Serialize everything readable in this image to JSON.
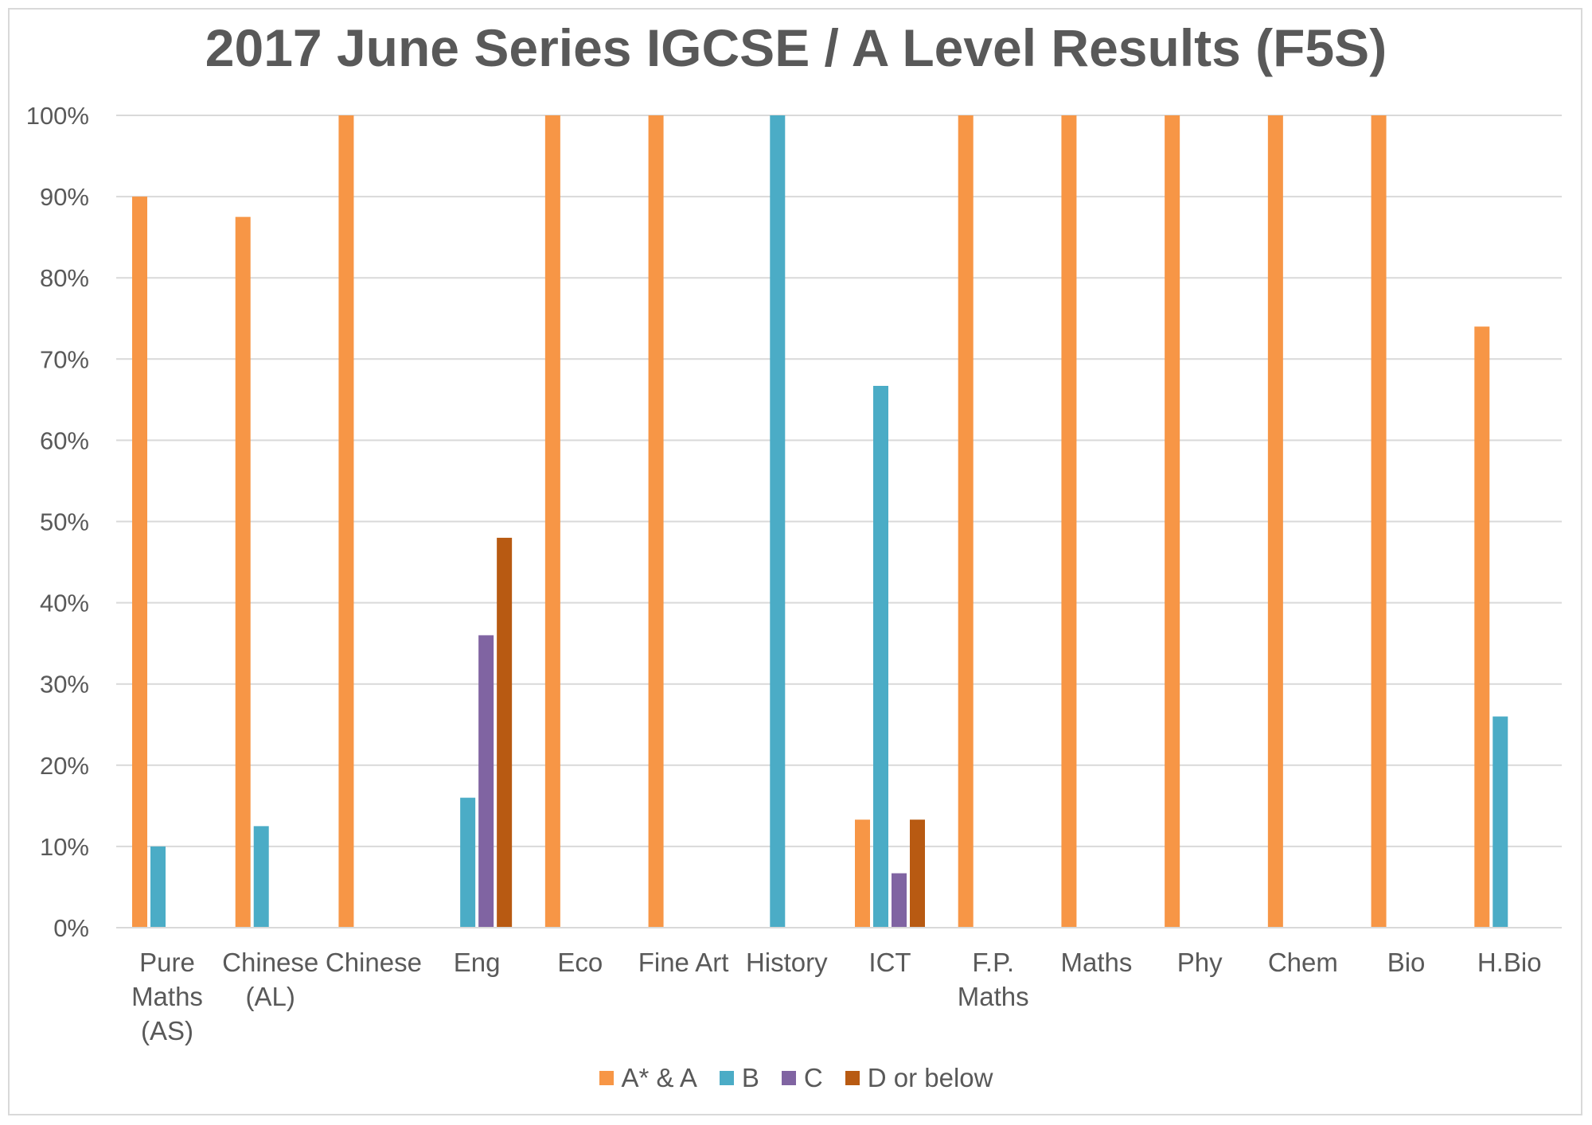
{
  "chart_data": {
    "type": "bar",
    "title": "2017 June Series IGCSE / A Level Results (F5S)",
    "xlabel": "",
    "ylabel": "",
    "ylim": [
      0,
      100
    ],
    "yticks": [
      "0%",
      "10%",
      "20%",
      "30%",
      "40%",
      "50%",
      "60%",
      "70%",
      "80%",
      "90%",
      "100%"
    ],
    "grid": true,
    "legend_position": "bottom",
    "categories": [
      [
        "Pure",
        "Maths",
        "(AS)"
      ],
      [
        "Chinese",
        "(AL)"
      ],
      [
        "Chinese"
      ],
      [
        "Eng"
      ],
      [
        "Eco"
      ],
      [
        "Fine Art"
      ],
      [
        "History"
      ],
      [
        "ICT"
      ],
      [
        "F.P.",
        "Maths"
      ],
      [
        "Maths"
      ],
      [
        "Phy"
      ],
      [
        "Chem"
      ],
      [
        "Bio"
      ],
      [
        "H.Bio"
      ]
    ],
    "series": [
      {
        "name": "A* & A",
        "color": "#f79646",
        "values": [
          90,
          87.5,
          100,
          0,
          100,
          100,
          0,
          13.3,
          100,
          100,
          100,
          100,
          100,
          74
        ]
      },
      {
        "name": "B",
        "color": "#4bacc6",
        "values": [
          10,
          12.5,
          0,
          16,
          0,
          0,
          100,
          66.7,
          0,
          0,
          0,
          0,
          0,
          26
        ]
      },
      {
        "name": "C",
        "color": "#8064a2",
        "values": [
          0,
          0,
          0,
          36,
          0,
          0,
          0,
          6.7,
          0,
          0,
          0,
          0,
          0,
          0
        ]
      },
      {
        "name": "D or below",
        "color": "#b85a12",
        "values": [
          0,
          0,
          0,
          48,
          0,
          0,
          0,
          13.3,
          0,
          0,
          0,
          0,
          0,
          0
        ]
      }
    ]
  }
}
